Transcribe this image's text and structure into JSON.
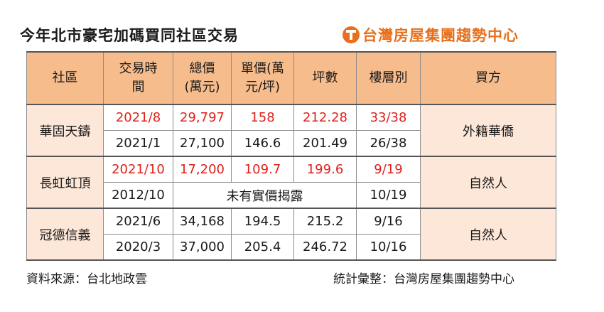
{
  "title": "今年北市豪宅加碼買同社區交易",
  "brand": "台灣房屋集團趨勢中心",
  "brand_color": "#e8701d",
  "header_color": "#f7bc8c",
  "highlight_color": "#e0201b",
  "headers": [
    "社區",
    "交易時間",
    "總價(萬元)",
    "單價(萬元/坪)",
    "坪數",
    "樓層別",
    "買方"
  ],
  "rows": [
    {
      "community": "華固天鑄",
      "buyer": "外籍華僑",
      "records": [
        {
          "date": "2021/8",
          "total": "29,797",
          "unit": "158",
          "area": "212.28",
          "floor": "33/38",
          "highlight": true
        },
        {
          "date": "2021/1",
          "total": "27,100",
          "unit": "146.6",
          "area": "201.49",
          "floor": "26/38",
          "highlight": false
        }
      ]
    },
    {
      "community": "長虹虹頂",
      "buyer": "自然人",
      "records": [
        {
          "date": "2021/10",
          "total": "17,200",
          "unit": "109.7",
          "area": "199.6",
          "floor": "9/19",
          "highlight": true
        },
        {
          "date": "2012/10",
          "no_price": "未有實價揭露",
          "floor": "10/19",
          "highlight": false
        }
      ]
    },
    {
      "community": "冠德信義",
      "buyer": "自然人",
      "records": [
        {
          "date": "2021/6",
          "total": "34,168",
          "unit": "194.5",
          "area": "215.2",
          "floor": "9/16",
          "highlight": false
        },
        {
          "date": "2020/3",
          "total": "37,000",
          "unit": "205.4",
          "area": "246.72",
          "floor": "10/16",
          "highlight": false
        }
      ]
    }
  ],
  "footer": {
    "source": "資料來源：台北地政雲",
    "compiled": "統計彙整：台灣房屋集團趨勢中心"
  }
}
